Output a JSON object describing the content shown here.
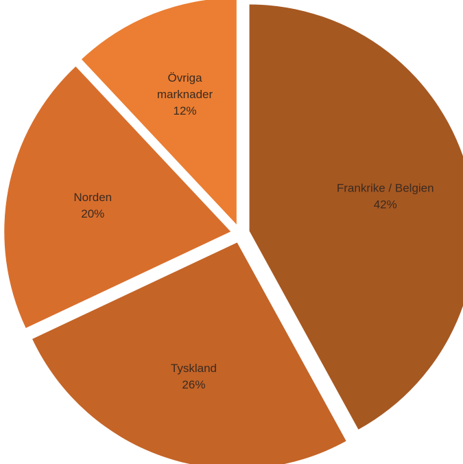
{
  "chart_data": {
    "type": "pie",
    "title": "",
    "slices": [
      {
        "label": "Frankrike / Belgien",
        "value": 42,
        "value_label": "42%",
        "color": "#A65821"
      },
      {
        "label": "Tyskland",
        "value": 26,
        "value_label": "26%",
        "color": "#C46427"
      },
      {
        "label": "Norden",
        "value": 20,
        "value_label": "20%",
        "color": "#D86E2C"
      },
      {
        "label": [
          "Övriga",
          "marknader"
        ],
        "value": 12,
        "value_label": "12%",
        "color": "#EB7E32"
      }
    ],
    "legend": "none",
    "labels_inside": true
  }
}
